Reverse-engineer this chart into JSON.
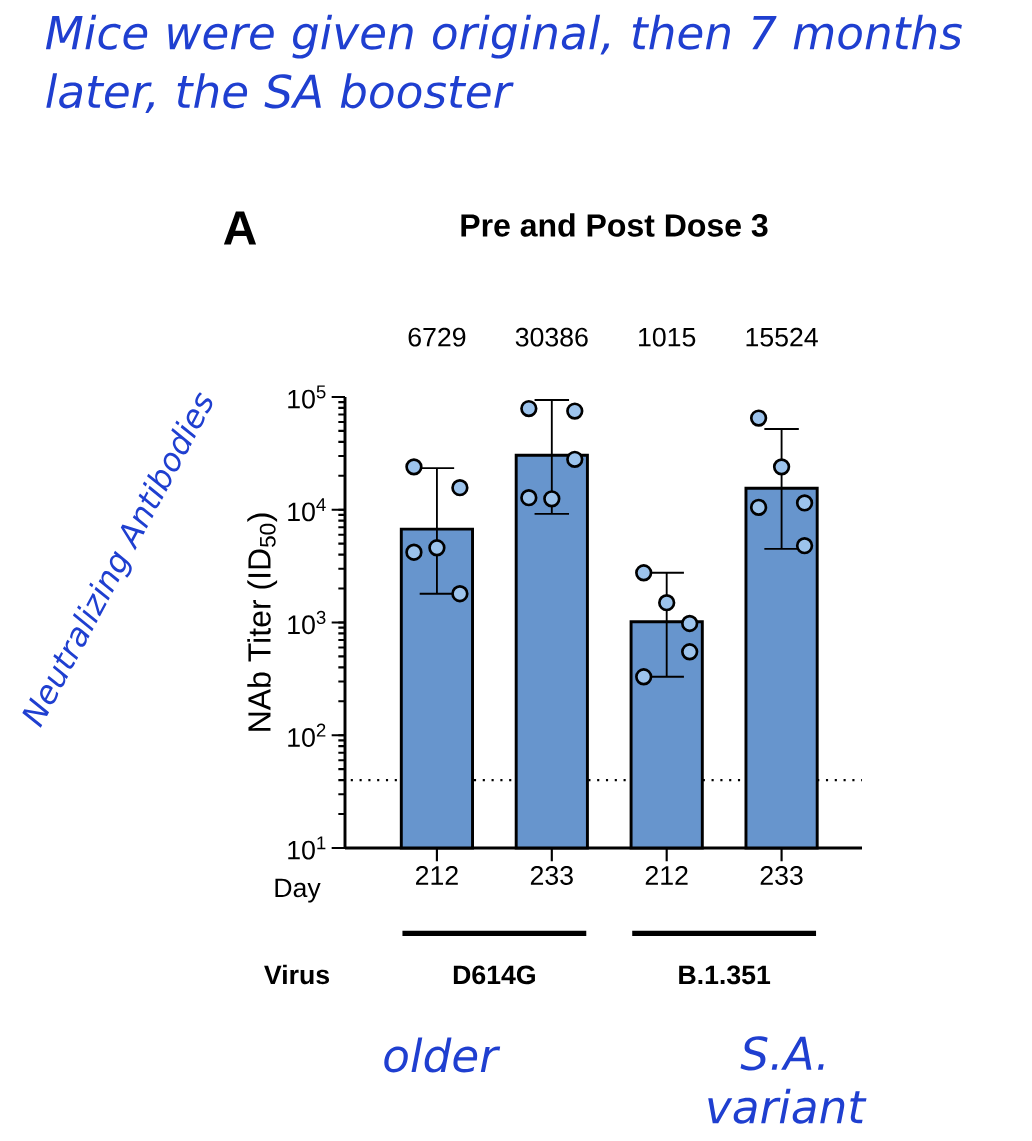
{
  "chart_data": {
    "type": "bar",
    "title": "Pre and Post Dose 3",
    "ylabel": "NAb Titer (ID$_{50}$)",
    "categories": [
      "212",
      "233",
      "212",
      "233"
    ],
    "log": "y",
    "ylim": [
      10,
      100000
    ],
    "yticks": [
      {
        "value": 10,
        "label": "10$^{1}$"
      },
      {
        "value": 100,
        "label": "10$^{2}$"
      },
      {
        "value": 1000,
        "label": "10$^{3}$"
      },
      {
        "value": 10000,
        "label": "10$^{4}$"
      },
      {
        "value": 100000,
        "label": "10$^{5}$"
      }
    ],
    "marker": "circle",
    "ref_lines": [
      {
        "axis": "y",
        "value": 40,
        "line_style": "dotted",
        "color": "#000000"
      }
    ],
    "annotations": [
      "Day",
      "Virus",
      "D614G",
      "B.1.351",
      "A",
      "Mice were given original, then 7 months later, the SA booster",
      "Neutralizing Antibodies",
      "older",
      "S.A. variant"
    ],
    "series": [
      {
        "color": "#6795cd",
        "values": [
          6729,
          30386,
          1015,
          15524
        ],
        "value_labels": [
          "6729",
          "30386",
          "1015",
          "15524"
        ],
        "errors": [
          [
            1800,
            23400
          ],
          [
            9200,
            94000
          ],
          [
            330,
            2760
          ],
          [
            4500,
            52000
          ]
        ]
      },
      {
        "type": "scatter",
        "color": "#9cc3ec",
        "values": [
          4600,
          12500,
          1500,
          24000
        ]
      },
      {
        "type": "scatter",
        "color": "#9cc3ec",
        "values": [
          24000,
          79000,
          2760,
          65000
        ]
      },
      {
        "type": "scatter",
        "color": "#9cc3ec",
        "values": [
          15700,
          75000,
          550,
          11500
        ]
      },
      {
        "type": "scatter",
        "color": "#9cc3ec",
        "values": [
          4200,
          12800,
          330,
          10500
        ]
      },
      {
        "type": "scatter",
        "color": "#9cc3ec",
        "values": [
          1800,
          28000,
          980,
          4800
        ]
      }
    ]
  }
}
